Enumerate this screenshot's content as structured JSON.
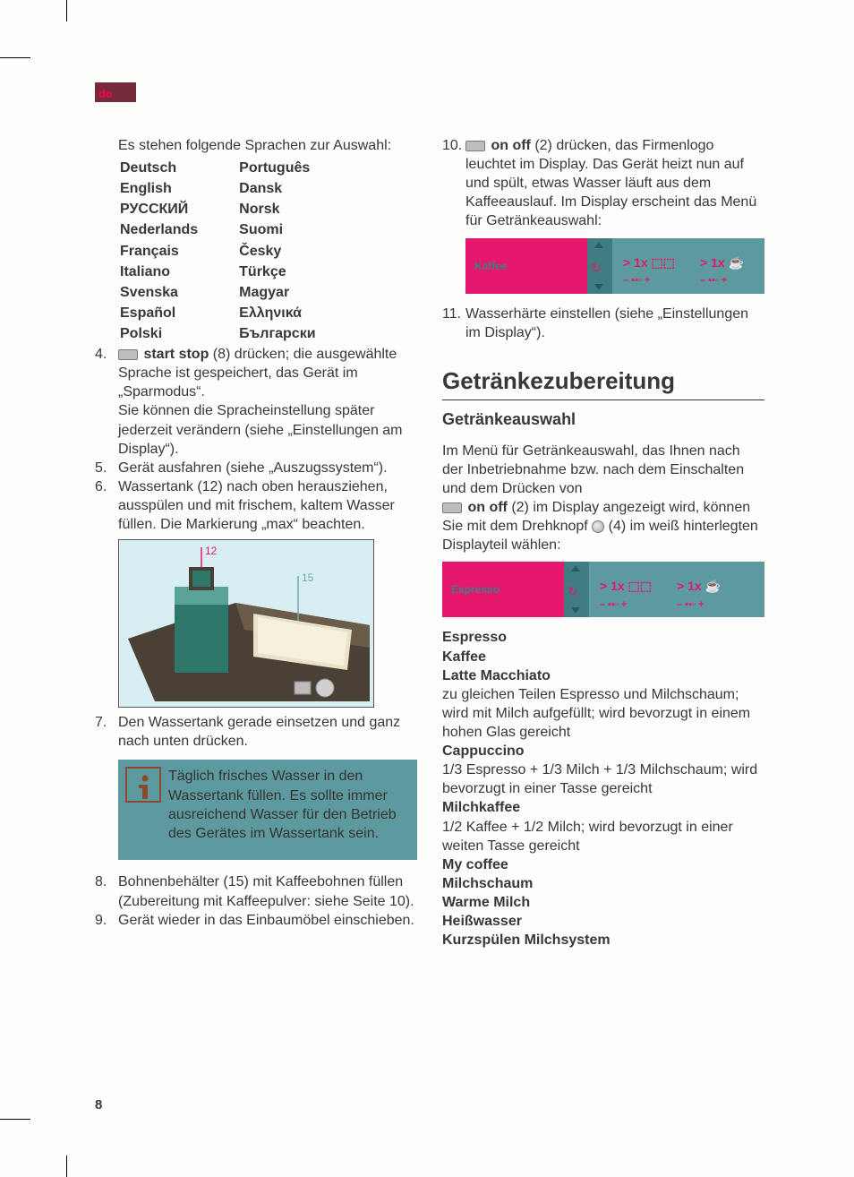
{
  "tab": "de",
  "pageNumber": "8",
  "left": {
    "intro": "Es stehen folgende Sprachen zur Auswahl:",
    "languages": [
      [
        "Deutsch",
        "Português"
      ],
      [
        "English",
        "Dansk"
      ],
      [
        "РУССКИЙ",
        "Norsk"
      ],
      [
        "Nederlands",
        "Suomi"
      ],
      [
        "Français",
        "Česky"
      ],
      [
        "Italiano",
        "Türkçe"
      ],
      [
        "Svenska",
        "Magyar"
      ],
      [
        "Español",
        "Ελληνικά"
      ],
      [
        "Polski",
        "Български"
      ]
    ],
    "step4_a": "start stop",
    "step4_b": " (8) drücken; die aus­gewählte Sprache ist gespeichert, das Gerät im „Sparmodus“.",
    "step4_c": "Sie können die Spracheinstellung spä­ter jederzeit verändern (siehe „Einstel­lungen am Display“).",
    "step5": "Gerät ausfahren (siehe „Auszugs­system“).",
    "step6": "Wassertank (12) nach oben heraus­ziehen, ausspülen und mit frischem, kaltem Wasser füllen. Die Markierung „max“ beachten.",
    "figLabels": {
      "a": "12",
      "b": "15"
    },
    "step7": "Den Wassertank gerade einsetzen und ganz nach unten drücken.",
    "infoBox": "Täglich frisches Wasser in den Wassertank füllen. Es sollte im­mer ausreichend Wasser für den Betrieb des Gerätes im Wasser­tank sein.",
    "step8": "Bohnenbehälter (15) mit Kaffeebohnen füllen (Zubereitung mit Kaffeepulver: siehe Seite 10).",
    "step9": "Gerät wieder in das Einbaumöbel ein­schieben."
  },
  "right": {
    "step10_a": "on off",
    "step10_b": " (2) drücken, das Firmenlogo leuchtet im Display. Das Gerät heizt nun auf und spült, etwas Wasser läuft aus dem Kaffeeauslauf. Im Display er­scheint das Menü für Getränkeauswahl:",
    "display1_label": "Kaffee",
    "step11": "Wasserhärte einstellen (siehe „Einstel­lungen im Display“).",
    "h1": "Getränkezubereitung",
    "h2": "Getränkeauswahl",
    "para1_a": "Im Menü für Getränkeauswahl, das Ihnen nach der Inbetriebnahme bzw. nach dem Einschalten und dem Drücken von",
    "para1_b": "on off",
    "para1_c": " (2) im Display angezeigt wird, können Sie mit dem Drehknopf ",
    "para1_d": " (4) im weiß hinterlegten Displayteil wählen:",
    "display2_label": "Espresso",
    "drinks": {
      "d1": "Espresso",
      "d2": "Kaffee",
      "d3": "Latte Macchiato",
      "d3_desc": "zu gleichen Teilen Espresso und Milch­schaum; wird mit Milch aufgefüllt; wird bevorzugt in einem hohen Glas gereicht",
      "d4": "Cappuccino",
      "d4_desc": "1/3 Espresso + 1/3 Milch + 1/3 Milch­schaum; wird bevorzugt in einer Tasse gereicht",
      "d5": "Milchkaffee",
      "d5_desc": "1/2 Kaffee + 1/2 Milch; wird bevorzugt in einer weiten Tasse gereicht",
      "d6": "My coffee",
      "d7": "Milchschaum",
      "d8": "Warme Milch",
      "d9": "Heißwasser",
      "d10": "Kurzspülen Milchsystem"
    },
    "setting_text": "1x ⬚⬚",
    "setting_sub": "– ▪▪▫ +"
  }
}
